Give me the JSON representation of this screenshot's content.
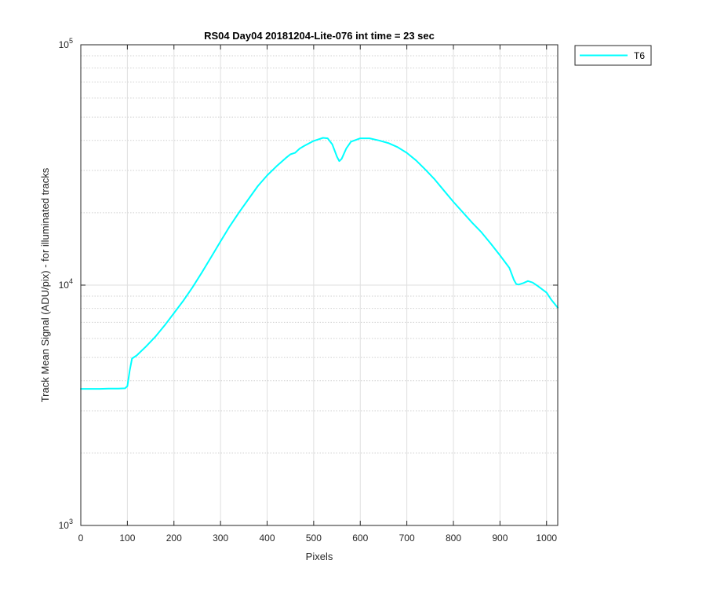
{
  "chart_data": {
    "type": "line",
    "title": "RS04 Day04 20181204-Lite-076 int time = 23 sec",
    "xlabel": "Pixels",
    "ylabel": "Track Mean Signal (ADU/pix) - for illuminated tracks",
    "xlim": [
      0,
      1024
    ],
    "ylim": [
      1000,
      100000
    ],
    "yscale": "log",
    "grid": true,
    "minor_grid": true,
    "legend_position": "outside-top-right",
    "xticks": [
      "0",
      "100",
      "200",
      "300",
      "400",
      "500",
      "600",
      "700",
      "800",
      "900",
      "1000"
    ],
    "yticks": [
      {
        "base": "10",
        "exp": "3"
      },
      {
        "base": "10",
        "exp": "4"
      },
      {
        "base": "10",
        "exp": "5"
      }
    ],
    "colors": {
      "series": "#00ffff",
      "axis": "#262626",
      "major_grid": "#dfdfdf",
      "minor_grid": "#cfcfcf"
    },
    "series": [
      {
        "name": "T6",
        "x": [
          0,
          20,
          40,
          60,
          80,
          95,
          100,
          105,
          110,
          120,
          140,
          160,
          180,
          200,
          220,
          240,
          260,
          280,
          300,
          320,
          340,
          360,
          380,
          400,
          420,
          440,
          450,
          460,
          470,
          480,
          500,
          520,
          530,
          540,
          550,
          555,
          560,
          570,
          580,
          600,
          620,
          640,
          660,
          680,
          700,
          720,
          740,
          760,
          780,
          800,
          820,
          840,
          860,
          880,
          900,
          920,
          930,
          935,
          940,
          950,
          960,
          970,
          980,
          1000,
          1010,
          1024
        ],
        "y": [
          3700,
          3700,
          3700,
          3710,
          3710,
          3720,
          3800,
          4400,
          4950,
          5100,
          5550,
          6100,
          6800,
          7650,
          8600,
          9800,
          11300,
          13100,
          15200,
          17600,
          20100,
          22800,
          25800,
          28600,
          31200,
          33800,
          35000,
          35500,
          37000,
          38000,
          39800,
          41000,
          40800,
          38500,
          34200,
          32800,
          33500,
          37000,
          39500,
          40800,
          40800,
          40000,
          39000,
          37500,
          35500,
          33000,
          30200,
          27500,
          24700,
          22200,
          20100,
          18200,
          16600,
          14900,
          13300,
          11800,
          10500,
          10100,
          10050,
          10200,
          10400,
          10250,
          9950,
          9300,
          8700,
          8050
        ]
      }
    ]
  }
}
